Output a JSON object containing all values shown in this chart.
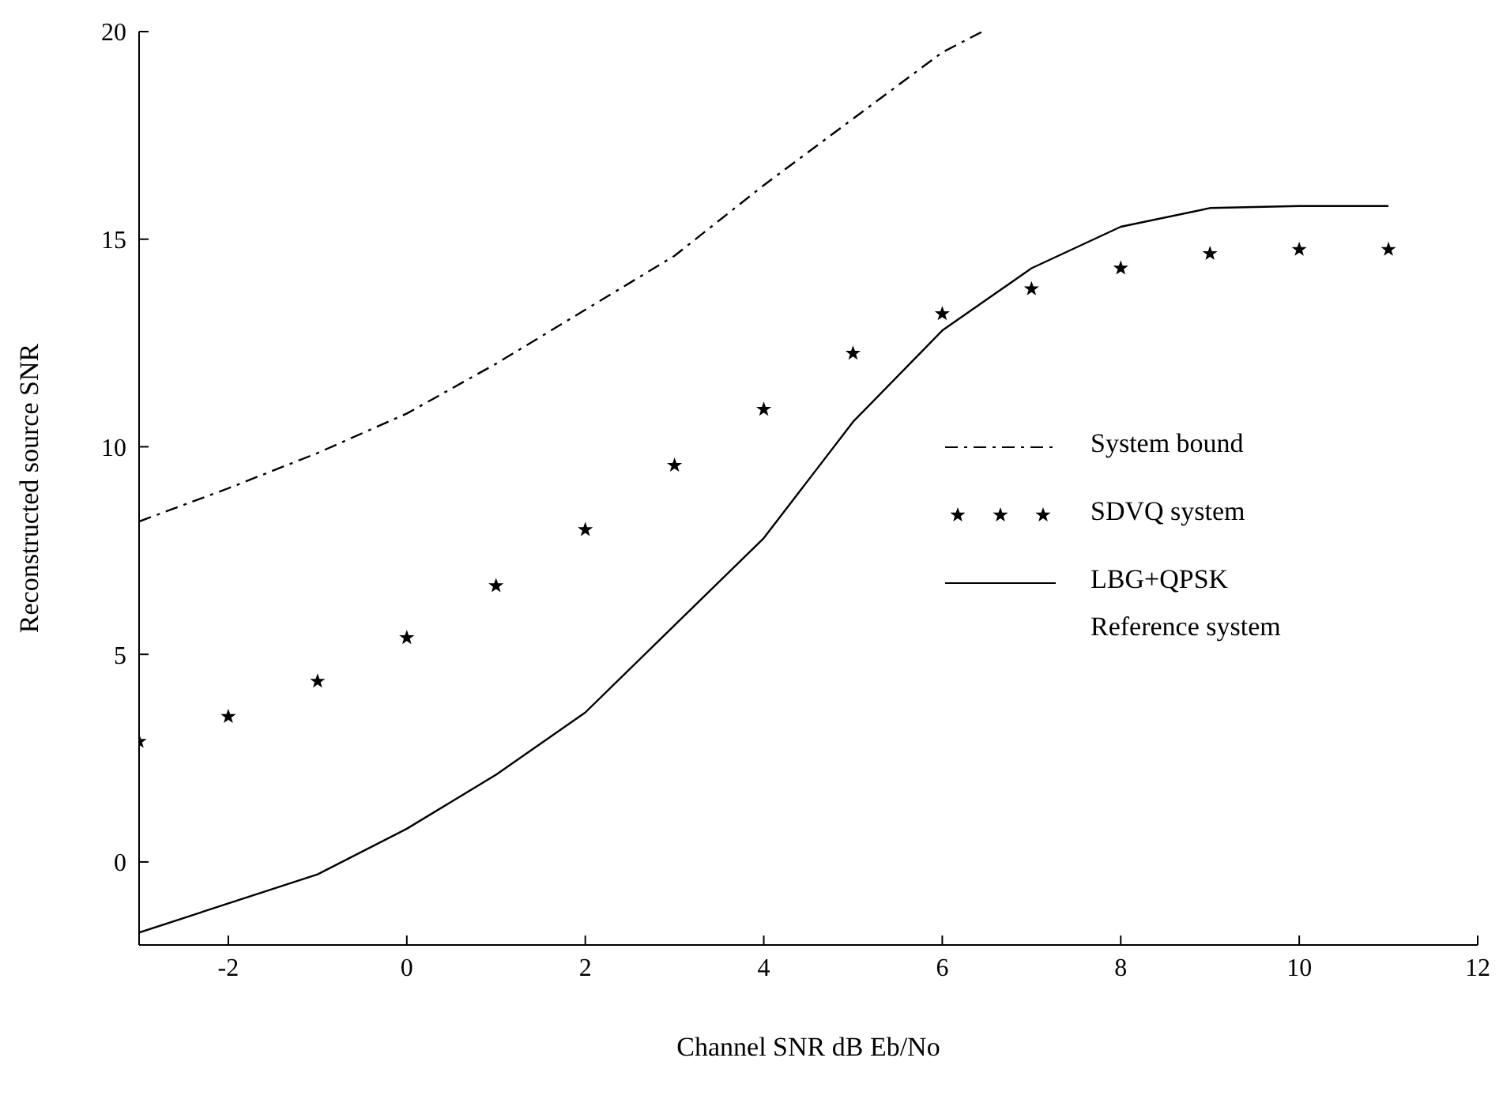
{
  "chart_data": {
    "type": "line",
    "xlabel": "Channel SNR dB Eb/No",
    "ylabel": "Reconstructed source SNR",
    "xlim": [
      -3,
      12
    ],
    "xticks": [
      -2,
      0,
      2,
      4,
      6,
      8,
      10,
      12
    ],
    "ylim": [
      -2,
      20
    ],
    "yticks": [
      0,
      5,
      10,
      15,
      20
    ],
    "grid": false,
    "legend": "right",
    "series": [
      {
        "name": "System bound",
        "type": "line",
        "line_style": "dashed",
        "color": "#000000",
        "x": [
          -3,
          -2,
          -1,
          0,
          1,
          2,
          3,
          4,
          5,
          6,
          6.45
        ],
        "values": [
          8.2,
          9.0,
          9.85,
          10.8,
          12.0,
          13.3,
          14.6,
          16.3,
          17.9,
          19.5,
          20
        ]
      },
      {
        "name": "SDVQ system",
        "type": "scatter",
        "marker": "star",
        "color": "#000000",
        "x": [
          -3,
          -2,
          -1,
          0,
          1,
          2,
          3,
          4,
          5,
          6,
          7,
          8,
          9,
          10,
          11
        ],
        "values": [
          2.9,
          3.5,
          4.35,
          5.4,
          6.65,
          8.0,
          9.55,
          10.9,
          12.25,
          13.2,
          13.8,
          14.3,
          14.65,
          14.75,
          14.75
        ]
      },
      {
        "name": "LBG+QPSK\nReference system",
        "type": "line",
        "line_style": "solid",
        "color": "#000000",
        "x": [
          -3,
          -2,
          -1,
          0,
          1,
          2,
          3,
          4,
          5,
          6,
          7,
          8,
          9,
          10,
          11
        ],
        "values": [
          -1.7,
          -1.0,
          -0.3,
          0.8,
          2.1,
          3.6,
          5.7,
          7.8,
          10.6,
          12.8,
          14.3,
          15.3,
          15.75,
          15.8,
          15.8
        ]
      }
    ]
  }
}
